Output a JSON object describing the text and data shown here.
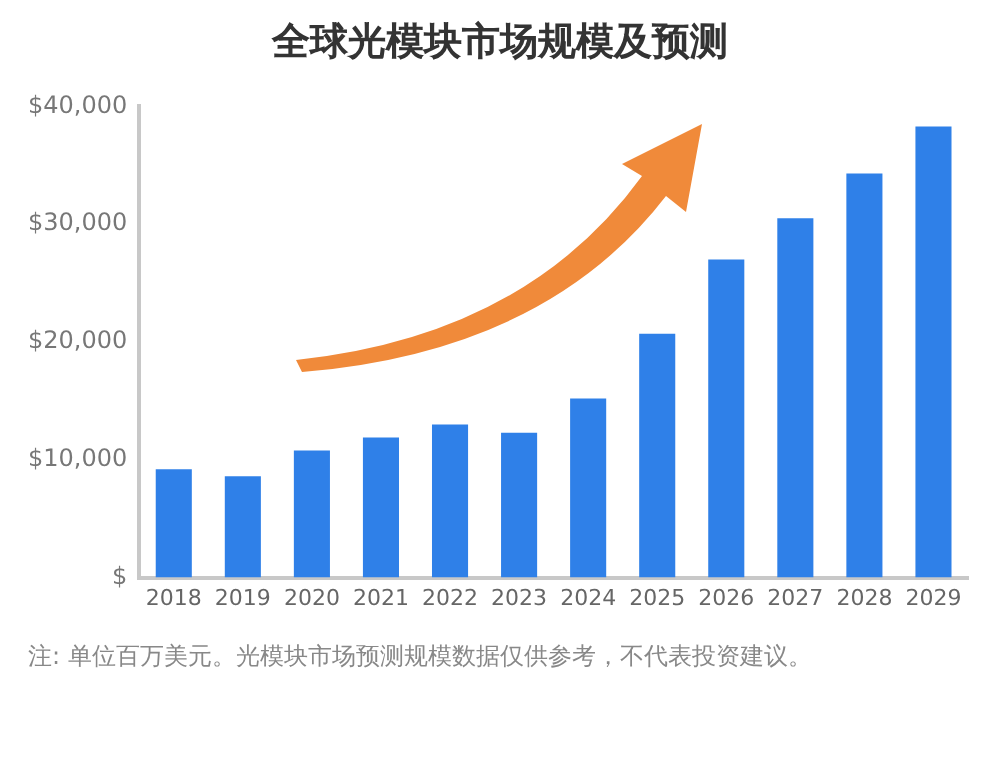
{
  "chart_data": {
    "type": "bar",
    "title": "全球光模块市场规模及预测",
    "categories": [
      "2018",
      "2019",
      "2020",
      "2021",
      "2022",
      "2023",
      "2024",
      "2025",
      "2026",
      "2027",
      "2028",
      "2029"
    ],
    "values": [
      9200,
      8600,
      10800,
      11900,
      13000,
      12300,
      15200,
      20700,
      27000,
      30500,
      34300,
      38300
    ],
    "color": "#2f80e8",
    "ylim": [
      0,
      40000
    ],
    "yticks": [
      {
        "value": 0,
        "label": "$"
      },
      {
        "value": 10000,
        "label": "$10,000"
      },
      {
        "value": 20000,
        "label": "$20,000"
      },
      {
        "value": 30000,
        "label": "$30,000"
      },
      {
        "value": 40000,
        "label": "$40,000"
      }
    ],
    "grid": false,
    "annotations": [
      "注: 单位百万美元。光模块市场预测规模数据仅供参考，不代表投资建议。"
    ]
  }
}
